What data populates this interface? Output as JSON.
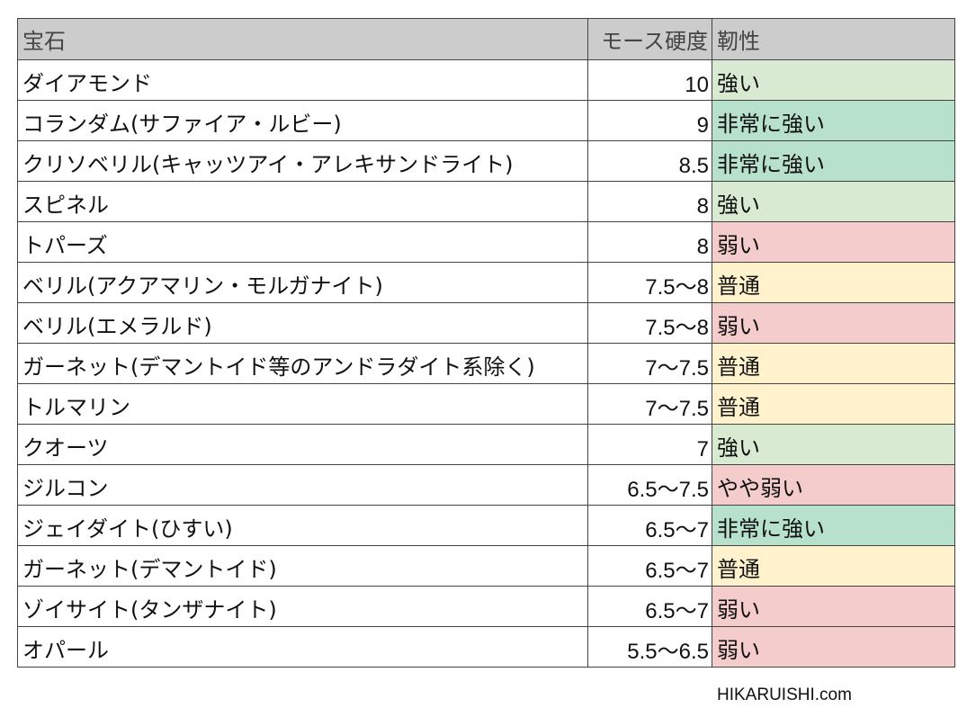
{
  "table": {
    "headers": [
      "宝石",
      "モース硬度",
      "靭性"
    ],
    "rows": [
      {
        "gem": "ダイアモンド",
        "hardness": "10",
        "toughness": "強い",
        "color": "#d9ead3"
      },
      {
        "gem": "コランダム(サファイア・ルビー)",
        "hardness": "9",
        "toughness": "非常に強い",
        "color": "#b7e1cd"
      },
      {
        "gem": "クリソベリル(キャッツアイ・アレキサンドライト)",
        "hardness": "8.5",
        "toughness": "非常に強い",
        "color": "#b7e1cd"
      },
      {
        "gem": "スピネル",
        "hardness": "8",
        "toughness": "強い",
        "color": "#d9ead3"
      },
      {
        "gem": "トパーズ",
        "hardness": "8",
        "toughness": "弱い",
        "color": "#f4cccc"
      },
      {
        "gem": "ベリル(アクアマリン・モルガナイト)",
        "hardness": "7.5～8",
        "toughness": "普通",
        "color": "#fff2cc"
      },
      {
        "gem": "ベリル(エメラルド)",
        "hardness": "7.5～8",
        "toughness": "弱い",
        "color": "#f4cccc"
      },
      {
        "gem": "ガーネット(デマントイド等のアンドラダイト系除く)",
        "hardness": "7～7.5",
        "toughness": "普通",
        "color": "#fff2cc"
      },
      {
        "gem": "トルマリン",
        "hardness": "7～7.5",
        "toughness": "普通",
        "color": "#fff2cc"
      },
      {
        "gem": "クオーツ",
        "hardness": "7",
        "toughness": "強い",
        "color": "#d9ead3"
      },
      {
        "gem": "ジルコン",
        "hardness": "6.5～7.5",
        "toughness": "やや弱い",
        "color": "#f4cccc"
      },
      {
        "gem": "ジェイダイト(ひすい)",
        "hardness": "6.5～7",
        "toughness": "非常に強い",
        "color": "#b7e1cd"
      },
      {
        "gem": "ガーネット(デマントイド)",
        "hardness": "6.5～7",
        "toughness": "普通",
        "color": "#fff2cc"
      },
      {
        "gem": "ゾイサイト(タンザナイト)",
        "hardness": "6.5～7",
        "toughness": "弱い",
        "color": "#f4cccc"
      },
      {
        "gem": "オパール",
        "hardness": "5.5～6.5",
        "toughness": "弱い",
        "color": "#f4cccc"
      }
    ]
  },
  "footer": {
    "credit": "HIKARUISHI.com"
  }
}
